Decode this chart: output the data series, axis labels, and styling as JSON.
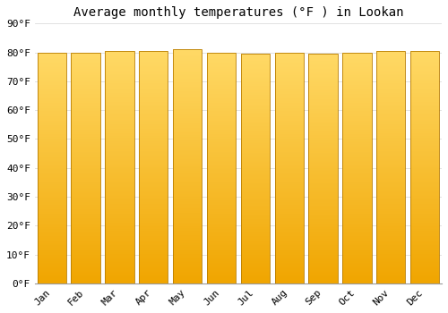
{
  "title": "Average monthly temperatures (°F ) in Lookan",
  "months": [
    "Jan",
    "Feb",
    "Mar",
    "Apr",
    "May",
    "Jun",
    "Jul",
    "Aug",
    "Sep",
    "Oct",
    "Nov",
    "Dec"
  ],
  "values": [
    80,
    80,
    80.5,
    80.5,
    81,
    80,
    79.5,
    80,
    79.5,
    80,
    80.5,
    80.5
  ],
  "ylim": [
    0,
    90
  ],
  "yticks": [
    0,
    10,
    20,
    30,
    40,
    50,
    60,
    70,
    80,
    90
  ],
  "bar_color_bottom": "#f0a500",
  "bar_color_top": "#ffd966",
  "bar_edge_color": "#b87c00",
  "background_color": "#ffffff",
  "plot_bg_color": "#ffffff",
  "grid_color": "#dddddd",
  "title_fontsize": 10,
  "tick_fontsize": 8,
  "bar_width": 0.85
}
